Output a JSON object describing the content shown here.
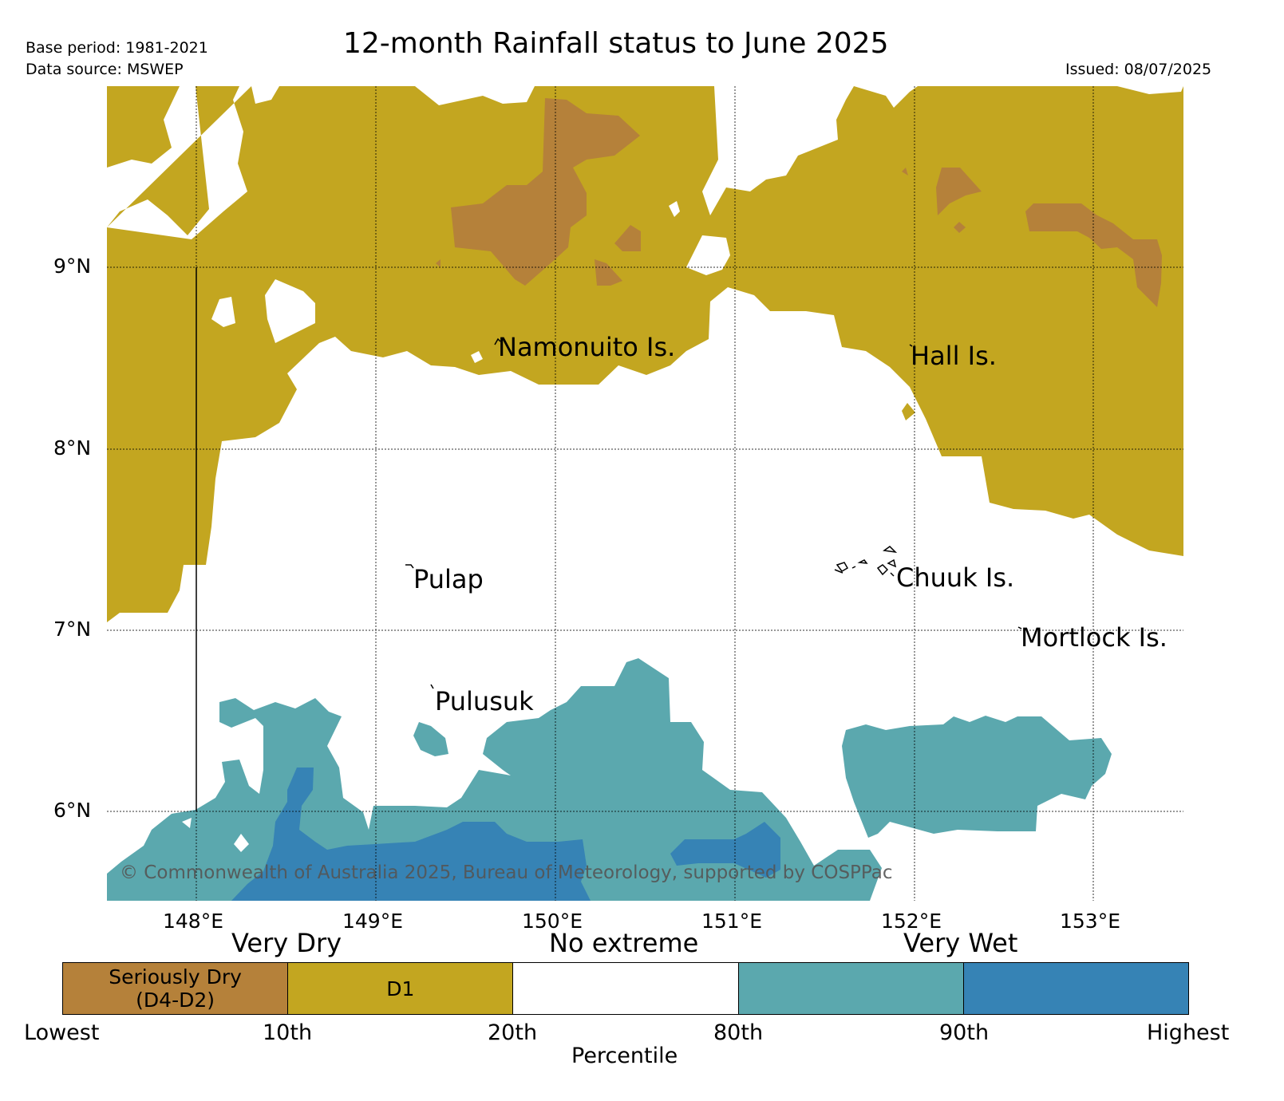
{
  "header": {
    "title": "12-month Rainfall status to June 2025",
    "base_period": "Base period: 1981-2021",
    "data_source": "Data source: MSWEP",
    "issued": "Issued: 08/07/2025"
  },
  "map": {
    "latitude_labels": [
      "9°N",
      "8°N",
      "7°N",
      "6°N"
    ],
    "longitude_labels": [
      "148°E",
      "149°E",
      "150°E",
      "151°E",
      "152°E",
      "153°E"
    ],
    "place_labels": [
      "Namonuito Is.",
      "Hall Is.",
      "Pulap",
      "Chuuk Is.",
      "Mortlock Is.",
      "Pulusuk"
    ],
    "copyright": "© Commonwealth of Australia 2025, Bureau of Meteorology, supported by COSPPac",
    "colors": {
      "seriously_dry": "#b5813a",
      "d1": "#c3a620",
      "no_extreme": "#ffffff",
      "wet_80_90": "#5ba8ae",
      "wet_90_plus": "#3683b5"
    }
  },
  "legend": {
    "categories": [
      "Very Dry",
      "No extreme",
      "Very Wet"
    ],
    "segments": [
      {
        "label_line1": "Seriously Dry",
        "label_line2": "(D4-D2)",
        "color": "#b5813a"
      },
      {
        "label_line1": "D1",
        "label_line2": "",
        "color": "#c3a620"
      },
      {
        "label_line1": "",
        "label_line2": "",
        "color": "#ffffff"
      },
      {
        "label_line1": "",
        "label_line2": "",
        "color": "#5ba8ae"
      },
      {
        "label_line1": "",
        "label_line2": "",
        "color": "#3683b5"
      }
    ],
    "percentile_ticks": [
      "Lowest",
      "10th",
      "20th",
      "80th",
      "90th",
      "Highest"
    ],
    "axis_label": "Percentile"
  }
}
